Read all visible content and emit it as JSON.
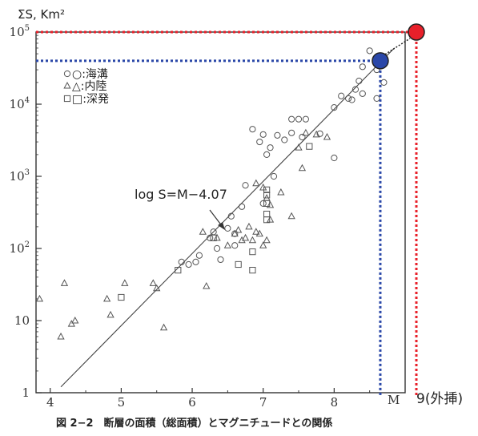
{
  "chart_data": {
    "type": "scatter",
    "ylabel": "ΣS, Km²",
    "xlabel": "M",
    "xlim": [
      3.8,
      9.0
    ],
    "ylim_log10": [
      0,
      5
    ],
    "y_scale": "log",
    "x_ticks": [
      "4",
      "5",
      "6",
      "7",
      "8"
    ],
    "y_ticks": [
      {
        "base": "1",
        "exp": ""
      },
      {
        "base": "10",
        "exp": ""
      },
      {
        "base": "10",
        "exp": "2"
      },
      {
        "base": "10",
        "exp": "3"
      },
      {
        "base": "10",
        "exp": "4"
      },
      {
        "base": "10",
        "exp": "5"
      }
    ],
    "legend": [
      {
        "marker": "circle",
        "label": "○:海溝"
      },
      {
        "marker": "triangle",
        "label": "△:内陸"
      },
      {
        "marker": "square",
        "label": "□:深発"
      }
    ],
    "fit_line": {
      "label": "log S=M−4.07",
      "intercept": -4.07,
      "x_range": [
        4.15,
        8.85
      ]
    },
    "series": [
      {
        "marker": "circle",
        "points": [
          [
            8.5,
            55000
          ],
          [
            8.4,
            33000
          ],
          [
            8.6,
            30000
          ],
          [
            8.35,
            21000
          ],
          [
            8.7,
            20000
          ],
          [
            8.3,
            16000
          ],
          [
            8.4,
            14000
          ],
          [
            8.1,
            13000
          ],
          [
            8.6,
            12000
          ],
          [
            8.25,
            11500
          ],
          [
            8.2,
            12000
          ],
          [
            8.0,
            9000
          ],
          [
            7.4,
            6200
          ],
          [
            7.5,
            6200
          ],
          [
            7.6,
            6200
          ],
          [
            6.85,
            4500
          ],
          [
            7.0,
            3800
          ],
          [
            7.2,
            3700
          ],
          [
            7.4,
            4000
          ],
          [
            6.95,
            3000
          ],
          [
            7.3,
            3200
          ],
          [
            7.55,
            3500
          ],
          [
            7.1,
            2500
          ],
          [
            7.8,
            3900
          ],
          [
            8.0,
            1800
          ],
          [
            7.05,
            2000
          ],
          [
            7.15,
            1000
          ],
          [
            6.75,
            750
          ],
          [
            7.0,
            420
          ],
          [
            6.7,
            380
          ],
          [
            6.55,
            280
          ],
          [
            6.5,
            190
          ],
          [
            6.6,
            160
          ],
          [
            6.3,
            170
          ],
          [
            6.25,
            140
          ],
          [
            6.35,
            100
          ],
          [
            6.1,
            80
          ],
          [
            6.4,
            70
          ],
          [
            6.05,
            65
          ],
          [
            5.95,
            60
          ],
          [
            5.85,
            65
          ],
          [
            6.6,
            110
          ]
        ]
      },
      {
        "marker": "triangle",
        "points": [
          [
            3.85,
            20
          ],
          [
            4.2,
            33
          ],
          [
            4.15,
            6
          ],
          [
            4.3,
            9
          ],
          [
            4.35,
            10
          ],
          [
            4.8,
            20
          ],
          [
            4.85,
            12
          ],
          [
            5.05,
            33
          ],
          [
            5.45,
            33
          ],
          [
            5.5,
            28
          ],
          [
            5.6,
            8
          ],
          [
            6.15,
            170
          ],
          [
            6.2,
            30
          ],
          [
            6.35,
            140
          ],
          [
            6.5,
            110
          ],
          [
            6.6,
            160
          ],
          [
            6.65,
            180
          ],
          [
            6.7,
            130
          ],
          [
            6.75,
            140
          ],
          [
            6.8,
            200
          ],
          [
            6.85,
            130
          ],
          [
            6.9,
            170
          ],
          [
            6.95,
            160
          ],
          [
            7.0,
            110
          ],
          [
            7.05,
            130
          ],
          [
            7.1,
            250
          ],
          [
            6.9,
            800
          ],
          [
            7.0,
            700
          ],
          [
            7.05,
            500
          ],
          [
            7.1,
            400
          ],
          [
            7.25,
            600
          ],
          [
            7.4,
            280
          ],
          [
            7.5,
            2500
          ],
          [
            7.6,
            4000
          ],
          [
            7.75,
            3800
          ],
          [
            7.9,
            3500
          ],
          [
            7.55,
            1300
          ]
        ]
      },
      {
        "marker": "square",
        "points": [
          [
            5.0,
            21
          ],
          [
            5.8,
            50
          ],
          [
            6.3,
            140
          ],
          [
            6.65,
            60
          ],
          [
            6.85,
            90
          ],
          [
            6.85,
            50
          ],
          [
            7.05,
            300
          ],
          [
            7.05,
            250
          ],
          [
            7.05,
            420
          ],
          [
            7.05,
            550
          ],
          [
            7.05,
            650
          ],
          [
            7.65,
            2600
          ]
        ]
      }
    ],
    "annotations": [
      {
        "label": "9(外挿)",
        "x": 9.0
      },
      {
        "point": "blue",
        "x": 8.65,
        "y": 40000
      },
      {
        "point": "red",
        "x": 9.0,
        "y": 100000
      }
    ],
    "caption": "図 2−2　断層の面積（総面積）とマグニチュードとの関係"
  },
  "colors": {
    "red": "#e8202a",
    "blue": "#2a47a8",
    "ink": "#555555",
    "axis": "#333333"
  }
}
